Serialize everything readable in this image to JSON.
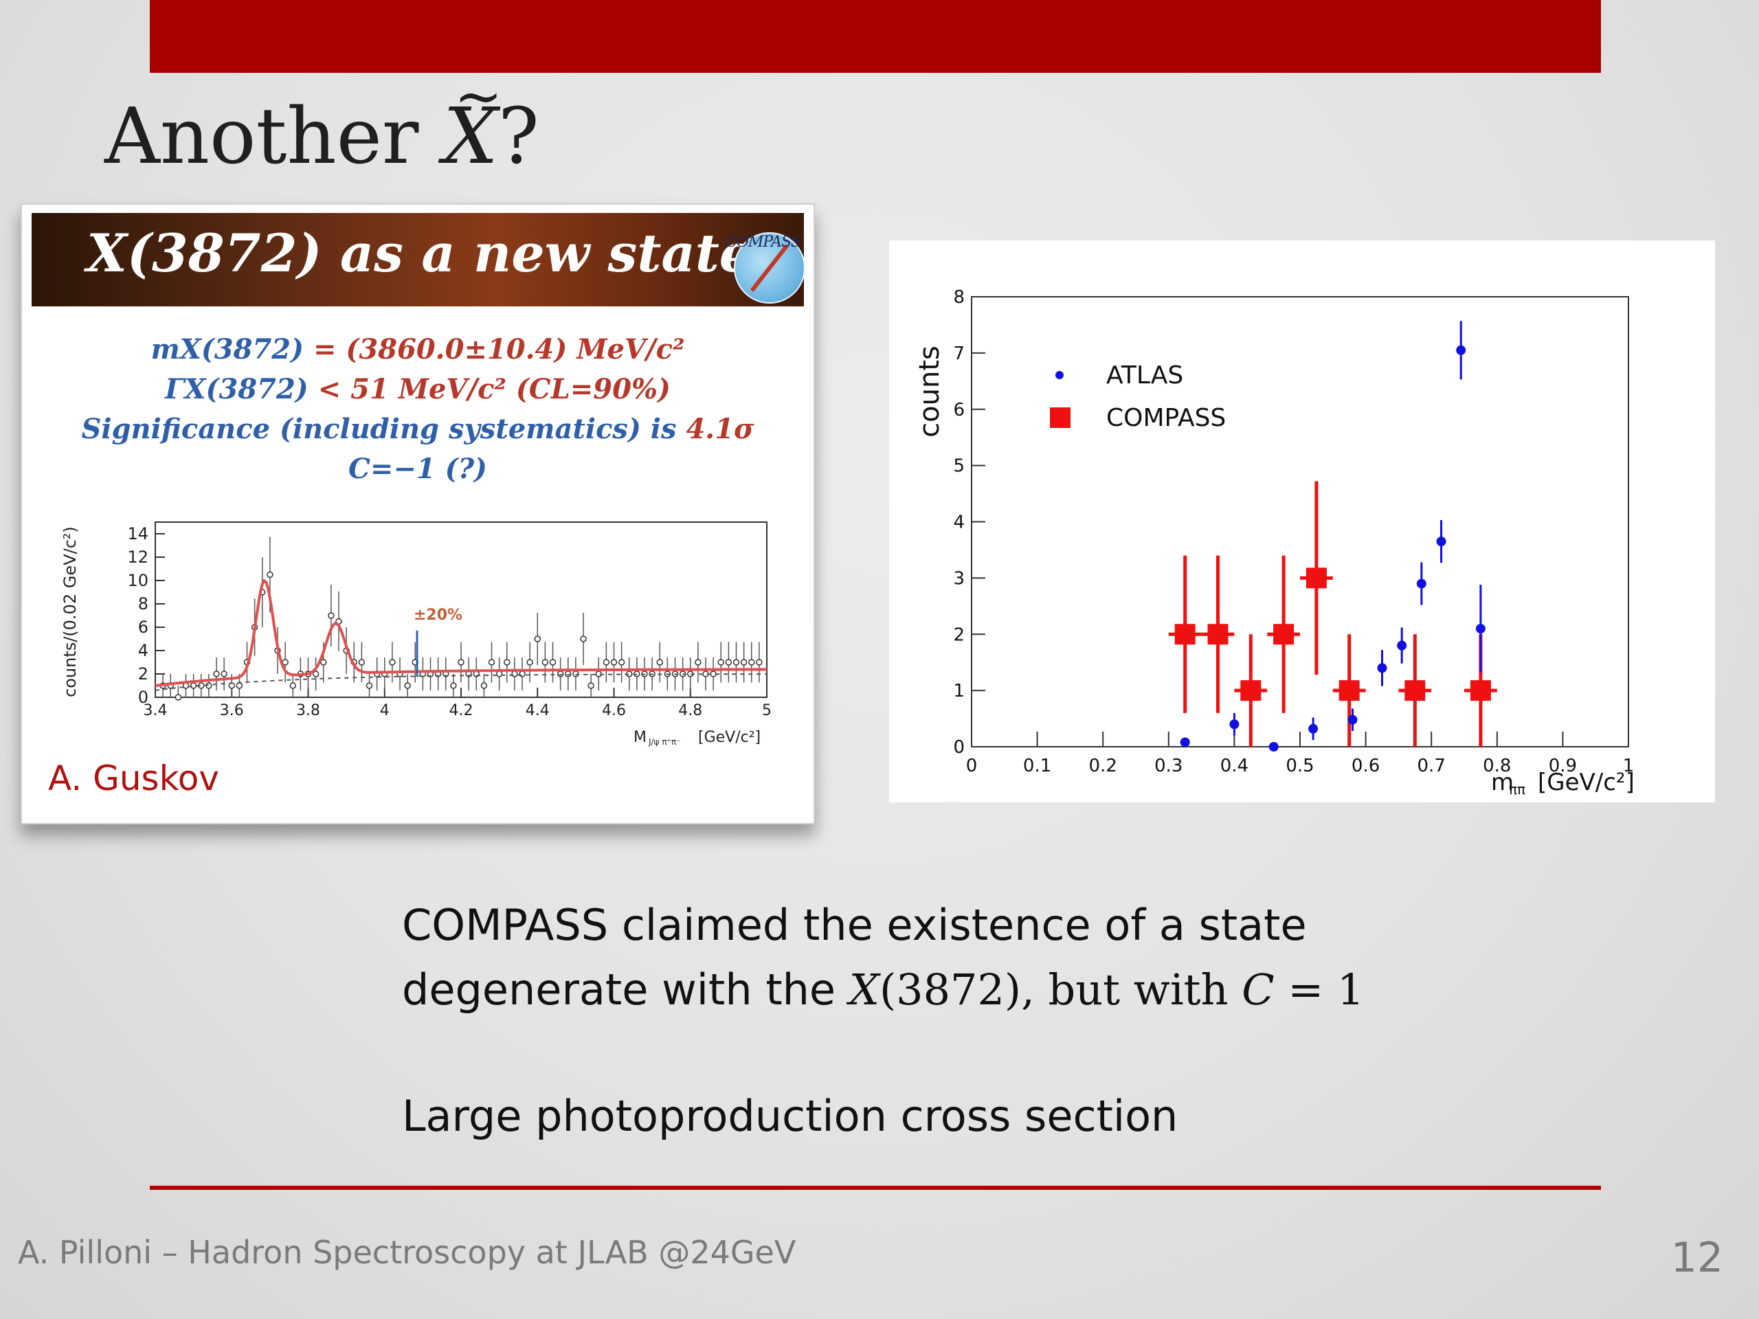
{
  "slide": {
    "title_prefix": "Another ",
    "title_symbol": "X",
    "title_suffix": "?",
    "page_number": "12",
    "footer": "A. Pilloni – Hadron Spectroscopy at JLAB @24GeV",
    "accent_color": "#a80000"
  },
  "left_card": {
    "banner_title": "X(3872) as a new state",
    "logo_text": "COMPASS",
    "mass_label": "mX(3872)",
    "mass_value": "= (3860.0±10.4) MeV/c²",
    "width_label": "ΓX(3872)",
    "width_value": "< 51 MeV/c² (CL=90%)",
    "significance_text": "Significance (including systematics) is ",
    "significance_value": "4.1σ",
    "c_parity": "C=−1 (?)",
    "author": "A. Guskov",
    "plot": {
      "ylabel": "counts/(0.02 GeV/c²)",
      "xlabel": "M",
      "xlabel_sub": "J/ψ π⁺π⁻",
      "xlabel_unit": "[GeV/c²]",
      "annotation": "±20%",
      "yticks": [
        "0",
        "2",
        "4",
        "6",
        "8",
        "10",
        "12",
        "14"
      ],
      "xticks": [
        "3.4",
        "3.6",
        "3.8",
        "4",
        "4.2",
        "4.4",
        "4.6",
        "4.8",
        "5"
      ]
    }
  },
  "body": {
    "line1": "COMPASS claimed the existence of a state",
    "line2_pre": "degenerate with the ",
    "line2_sym": "X",
    "line2_mid": "(3872), but with ",
    "line2_c": "C",
    "line2_end": " = 1",
    "line3": "Large photoproduction cross section"
  },
  "chart_data": {
    "type": "scatter",
    "xlabel": "m",
    "xlabel_sub": "ππ",
    "xlabel_unit": "[GeV/c²]",
    "ylabel": "counts",
    "xlim": [
      0,
      1
    ],
    "ylim": [
      0,
      8
    ],
    "xticks": [
      "0",
      "0.1",
      "0.2",
      "0.3",
      "0.4",
      "0.5",
      "0.6",
      "0.7",
      "0.8",
      "0.9",
      "1"
    ],
    "yticks": [
      "0",
      "1",
      "2",
      "3",
      "4",
      "5",
      "6",
      "7",
      "8"
    ],
    "legend_position": "top-left",
    "series": [
      {
        "name": "ATLAS",
        "color": "#1010e0",
        "marker": "circle",
        "points": [
          {
            "x": 0.325,
            "y": 0.08,
            "err": 0.08
          },
          {
            "x": 0.4,
            "y": 0.4,
            "err": 0.2
          },
          {
            "x": 0.46,
            "y": 0.0,
            "err": 0.0
          },
          {
            "x": 0.52,
            "y": 0.32,
            "err": 0.2
          },
          {
            "x": 0.58,
            "y": 0.48,
            "err": 0.2
          },
          {
            "x": 0.625,
            "y": 1.4,
            "err": 0.32
          },
          {
            "x": 0.655,
            "y": 1.8,
            "err": 0.32
          },
          {
            "x": 0.685,
            "y": 2.9,
            "err": 0.38
          },
          {
            "x": 0.715,
            "y": 3.65,
            "err": 0.38
          },
          {
            "x": 0.745,
            "y": 7.05,
            "err": 0.52
          },
          {
            "x": 0.775,
            "y": 2.1,
            "err": 0.78
          }
        ]
      },
      {
        "name": "COMPASS",
        "color": "#ee1111",
        "marker": "square",
        "points": [
          {
            "x": 0.325,
            "y": 2,
            "xerr": 0.025,
            "err": 1.4
          },
          {
            "x": 0.375,
            "y": 2,
            "xerr": 0.025,
            "err": 1.4
          },
          {
            "x": 0.425,
            "y": 1,
            "xerr": 0.025,
            "err": 1.0
          },
          {
            "x": 0.475,
            "y": 2,
            "xerr": 0.025,
            "err": 1.4
          },
          {
            "x": 0.525,
            "y": 3,
            "xerr": 0.025,
            "err": 1.72
          },
          {
            "x": 0.575,
            "y": 1,
            "xerr": 0.025,
            "err": 1.0
          },
          {
            "x": 0.675,
            "y": 1,
            "xerr": 0.025,
            "err": 1.0
          },
          {
            "x": 0.775,
            "y": 1,
            "xerr": 0.025,
            "err": 1.0
          }
        ]
      }
    ]
  }
}
